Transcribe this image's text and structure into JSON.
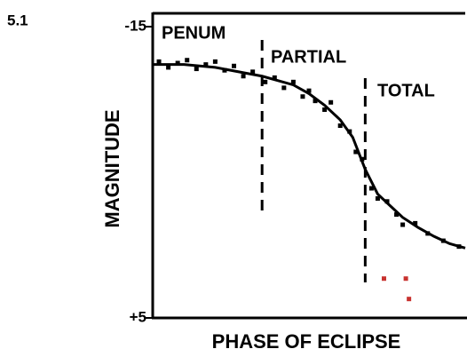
{
  "chart_data": {
    "type": "scatter",
    "figure_label": "5.1",
    "ylabel": "MAGNITUDE",
    "xlabel": "PHASE OF ECLIPSE",
    "xlim": [
      0,
      100
    ],
    "ylim": [
      5,
      -15
    ],
    "yticks": [
      -15,
      {
        "value": 5,
        "label": "+5"
      }
    ],
    "phases": [
      {
        "label": "PENUM"
      },
      {
        "label": "PARTIAL",
        "x": 35
      },
      {
        "label": "TOTAL",
        "x": 68
      }
    ],
    "series": [
      {
        "type": "line",
        "color": "#000000",
        "x": [
          0,
          10,
          20,
          30,
          35,
          40,
          45,
          50,
          55,
          60,
          64,
          68,
          72,
          76,
          80,
          85,
          90,
          95,
          100
        ],
        "values": [
          -12.4,
          -12.4,
          -12.2,
          -11.8,
          -11.6,
          -11.3,
          -11.0,
          -10.4,
          -9.6,
          -8.6,
          -7.4,
          -5.2,
          -3.5,
          -2.7,
          -1.9,
          -1.2,
          -0.6,
          -0.1,
          0.2
        ]
      },
      {
        "type": "scatter",
        "color": "#000000",
        "x": [
          2,
          5,
          8,
          11,
          14,
          17,
          20,
          23,
          26,
          29,
          32,
          36,
          39,
          42,
          45,
          48,
          50,
          52,
          55,
          57,
          60,
          63,
          65,
          67,
          70,
          72,
          75,
          78,
          80,
          84,
          88,
          93,
          98
        ],
        "values": [
          -12.6,
          -12.2,
          -12.5,
          -12.7,
          -12.1,
          -12.4,
          -12.6,
          -12.0,
          -12.3,
          -11.6,
          -11.9,
          -11.2,
          -11.5,
          -10.8,
          -11.2,
          -10.2,
          -10.6,
          -9.9,
          -9.3,
          -9.8,
          -8.2,
          -7.8,
          -6.4,
          -5.9,
          -3.9,
          -3.2,
          -3.0,
          -2.1,
          -1.4,
          -1.5,
          -0.8,
          -0.3,
          0.1
        ]
      },
      {
        "type": "scatter",
        "color": "#c8322f",
        "x": [
          74,
          81,
          82
        ],
        "values": [
          2.3,
          2.3,
          3.7
        ]
      }
    ]
  }
}
